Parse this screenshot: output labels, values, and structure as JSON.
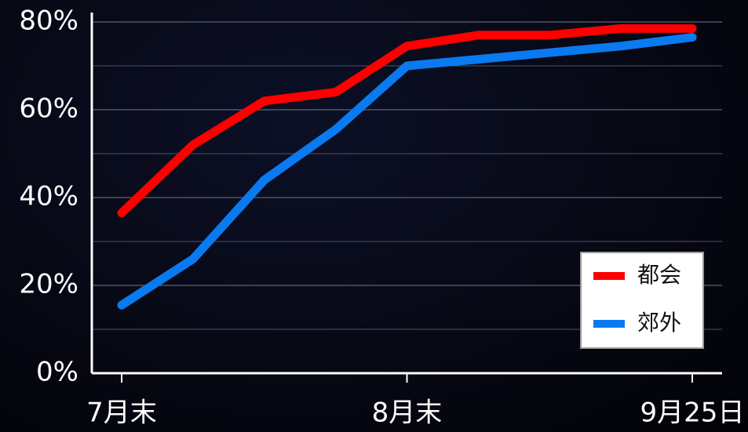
{
  "chart_data": {
    "type": "line",
    "categories": [
      "7月末",
      null,
      null,
      null,
      "8月末",
      null,
      null,
      null,
      "9月25日"
    ],
    "series": [
      {
        "name": "都会",
        "color": "#ff0000",
        "values": [
          36.5,
          52,
          62,
          64,
          74.5,
          77,
          77,
          78.5,
          78.5
        ]
      },
      {
        "name": "郊外",
        "color": "#0a7af0",
        "values": [
          15.5,
          26,
          44,
          55.5,
          70,
          71.5,
          73,
          74.5,
          76.5
        ]
      }
    ],
    "ylim": [
      0,
      80
    ],
    "yticks": [
      {
        "value": 0,
        "label": "0%"
      },
      {
        "value": 20,
        "label": "20%"
      },
      {
        "value": 40,
        "label": "40%"
      },
      {
        "value": 60,
        "label": "60%"
      },
      {
        "value": 80,
        "label": "80%"
      }
    ],
    "minor_yticks": [
      10,
      30,
      50,
      70
    ],
    "grid": true,
    "legend": "lower right"
  }
}
